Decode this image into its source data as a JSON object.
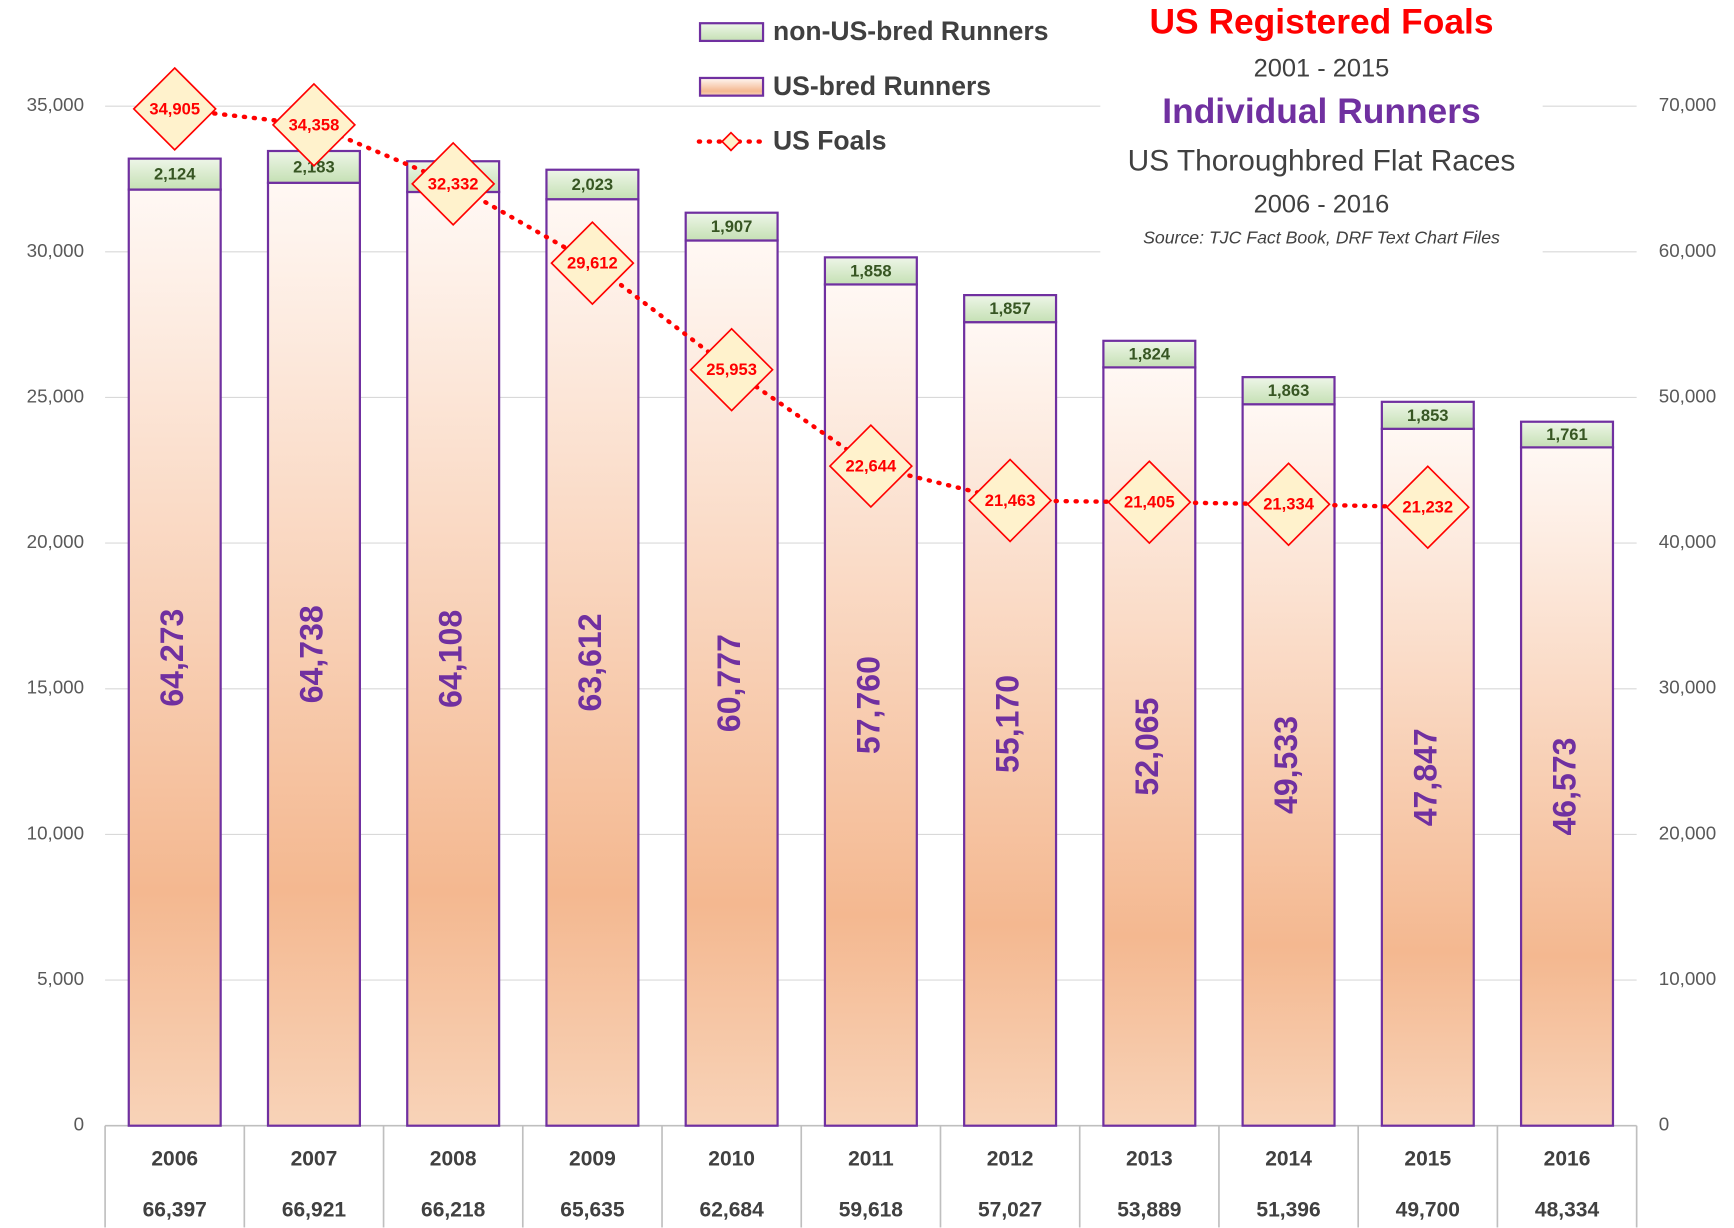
{
  "chart_data": {
    "type": "bar",
    "stacked": true,
    "titles": [
      "US Registered Foals",
      "2001 - 2015",
      "Individual Runners",
      "US Thoroughbred Flat Races",
      "2006 - 2016",
      "Source: TJC Fact Book, DRF Text Chart Files"
    ],
    "title_colors": [
      "#ff0000",
      "#404040",
      "#7030a0",
      "#404040",
      "#404040",
      "#404040"
    ],
    "categories": [
      "2006",
      "2007",
      "2008",
      "2009",
      "2010",
      "2011",
      "2012",
      "2013",
      "2014",
      "2015",
      "2016"
    ],
    "total_row": {
      "values": [
        66397,
        66921,
        66218,
        65635,
        62684,
        59618,
        57027,
        53889,
        51396,
        49700,
        48334
      ],
      "value_labels": [
        "66,397",
        "66,921",
        "66,218",
        "65,635",
        "62,684",
        "59,618",
        "57,027",
        "53,889",
        "51,396",
        "49,700",
        "48,334"
      ]
    },
    "series": [
      {
        "name": "US-bred Runners",
        "type": "bar",
        "axis": "y2",
        "color": "#f4b890",
        "edge_color": "#7030a0",
        "label_color": "#7030a0",
        "values": [
          64273,
          64738,
          64108,
          63612,
          60777,
          57760,
          55170,
          52065,
          49533,
          47847,
          46573
        ],
        "value_labels": [
          "64,273",
          "64,738",
          "64,108",
          "63,612",
          "60,777",
          "57,760",
          "55,170",
          "52,065",
          "49,533",
          "47,847",
          "46,573"
        ]
      },
      {
        "name": "non-US-bred Runners",
        "type": "bar",
        "axis": "y2",
        "color": "#c5e0b4",
        "edge_color": "#7030a0",
        "label_color": "#375623",
        "values": [
          2124,
          2183,
          2110,
          2023,
          1907,
          1858,
          1857,
          1824,
          1863,
          1853,
          1761
        ],
        "value_labels": [
          "2,124",
          "2,183",
          "2,110",
          "2,023",
          "1,907",
          "1,858",
          "1,857",
          "1,824",
          "1,863",
          "1,853",
          "1,761"
        ]
      },
      {
        "name": "US Foals",
        "type": "line",
        "color": "#ff0000",
        "marker_fill": "#fff2cc",
        "values": [
          34905,
          34358,
          32332,
          29612,
          25953,
          22644,
          21463,
          21405,
          21334,
          21232,
          null
        ],
        "value_labels": [
          "34,905",
          "34,358",
          "32,332",
          "29,612",
          "25,953",
          "22,644",
          "21,463",
          "21,405",
          "21,334",
          "21,232",
          null
        ]
      }
    ],
    "ylim": [
      0,
      35000
    ],
    "yticks": [
      0,
      {
        "value": 5000,
        "label": "5,000"
      },
      {
        "value": 10000,
        "label": "10,000"
      },
      {
        "value": 15000,
        "label": "15,000"
      },
      {
        "value": 20000,
        "label": "20,000"
      },
      {
        "value": 25000,
        "label": "25,000"
      },
      {
        "value": 30000,
        "label": "30,000"
      },
      {
        "value": 35000,
        "label": "35,000"
      }
    ],
    "y2lim": [
      0,
      70000
    ],
    "y2ticks": [
      0,
      {
        "value": 10000,
        "label": "10,000"
      },
      {
        "value": 20000,
        "label": "20,000"
      },
      {
        "value": 30000,
        "label": "30,000"
      },
      {
        "value": 40000,
        "label": "40,000"
      },
      {
        "value": 50000,
        "label": "50,000"
      },
      {
        "value": 60000,
        "label": "60,000"
      },
      {
        "value": 70000,
        "label": "70,000"
      }
    ],
    "grid": true
  }
}
